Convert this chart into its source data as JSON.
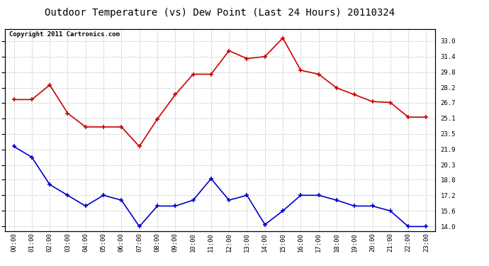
{
  "title": "Outdoor Temperature (vs) Dew Point (Last 24 Hours) 20110324",
  "copyright": "Copyright 2011 Cartronics.com",
  "x_labels": [
    "00:00",
    "01:00",
    "02:00",
    "03:00",
    "04:00",
    "05:00",
    "06:00",
    "07:00",
    "08:00",
    "09:00",
    "10:00",
    "11:00",
    "12:00",
    "13:00",
    "14:00",
    "15:00",
    "16:00",
    "17:00",
    "18:00",
    "19:00",
    "20:00",
    "21:00",
    "22:00",
    "23:00"
  ],
  "temp_data": [
    27.0,
    27.0,
    28.5,
    25.6,
    24.2,
    24.2,
    24.2,
    22.2,
    25.0,
    27.5,
    29.6,
    29.6,
    32.0,
    31.2,
    31.4,
    33.3,
    30.0,
    29.6,
    28.2,
    27.5,
    26.8,
    26.7,
    25.2,
    25.2
  ],
  "dew_data": [
    22.2,
    21.1,
    18.3,
    17.2,
    16.1,
    17.2,
    16.7,
    14.0,
    16.1,
    16.1,
    16.7,
    18.9,
    16.7,
    17.2,
    14.2,
    15.6,
    17.2,
    17.2,
    16.7,
    16.1,
    16.1,
    15.6,
    14.0,
    14.0
  ],
  "temp_color": "#cc0000",
  "dew_color": "#0000cc",
  "ylim": [
    13.5,
    34.2
  ],
  "yticks_right": [
    14.0,
    15.6,
    17.2,
    18.8,
    20.3,
    21.9,
    23.5,
    25.1,
    26.7,
    28.2,
    29.8,
    31.4,
    33.0
  ],
  "bg_color": "#ffffff",
  "grid_color": "#cccccc",
  "title_fontsize": 10,
  "copyright_fontsize": 6.5,
  "tick_fontsize": 6.5
}
